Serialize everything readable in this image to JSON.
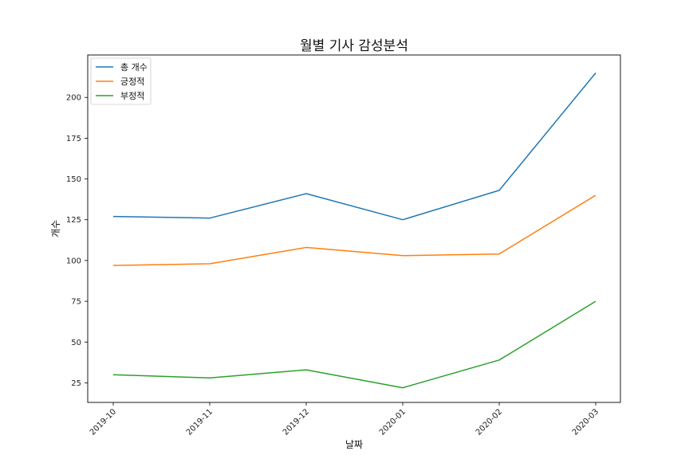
{
  "chart_data": {
    "type": "line",
    "title": "월별 기사 감성분석",
    "xlabel": "날짜",
    "ylabel": "개수",
    "categories": [
      "2019-10",
      "2019-11",
      "2019-12",
      "2020-01",
      "2020-02",
      "2020-03"
    ],
    "series": [
      {
        "name": "총 개수",
        "color": "#1f77b4",
        "values": [
          127,
          126,
          141,
          125,
          143,
          215
        ]
      },
      {
        "name": "긍정적",
        "color": "#ff7f0e",
        "values": [
          97,
          98,
          108,
          103,
          104,
          140
        ]
      },
      {
        "name": "부정적",
        "color": "#2ca02c",
        "values": [
          30,
          28,
          33,
          22,
          39,
          75
        ]
      }
    ],
    "ylim": [
      13,
      226
    ],
    "yticks": [
      25,
      50,
      75,
      100,
      125,
      150,
      175,
      200
    ],
    "grid": false,
    "legend": "top-left"
  }
}
